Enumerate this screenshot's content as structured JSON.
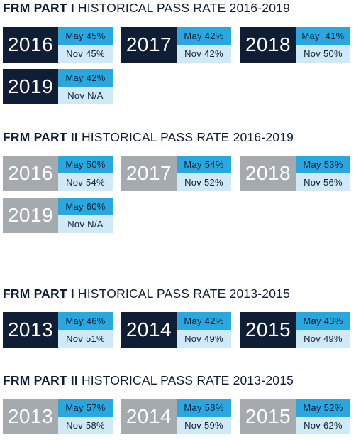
{
  "sections": [
    {
      "title_bold": "FRM PART I",
      "title_rest": " HISTORICAL PASS RATE 2016-2019",
      "style": "dark",
      "years": [
        {
          "year": "2016",
          "may": "May 45%",
          "nov": "Nov 45%"
        },
        {
          "year": "2017",
          "may": "May 42%",
          "nov": "Nov 42%"
        },
        {
          "year": "2018",
          "may": "May  41%",
          "nov": "Nov 50%"
        },
        {
          "year": "2019",
          "may": "May 42%",
          "nov": "Nov N/A"
        }
      ]
    },
    {
      "title_bold": "FRM PART II",
      "title_rest": " HISTORICAL PASS RATE 2016-2019",
      "style": "gray",
      "years": [
        {
          "year": "2016",
          "may": "May 50%",
          "nov": "Nov 54%"
        },
        {
          "year": "2017",
          "may": "May 54%",
          "nov": "Nov 52%"
        },
        {
          "year": "2018",
          "may": "May 53%",
          "nov": "Nov 56%"
        },
        {
          "year": "2019",
          "may": "May 60%",
          "nov": "Nov N/A"
        }
      ]
    },
    {
      "title_bold": "FRM PART I",
      "title_rest": " HISTORICAL PASS RATE 2013-2015",
      "style": "dark",
      "years": [
        {
          "year": "2013",
          "may": "May 46%",
          "nov": "Nov 51%"
        },
        {
          "year": "2014",
          "may": "May 42%",
          "nov": "Nov 49%"
        },
        {
          "year": "2015",
          "may": "May 43%",
          "nov": "Nov 49%"
        }
      ]
    },
    {
      "title_bold": "FRM PART II",
      "title_rest": " HISTORICAL PASS RATE 2013-2015",
      "style": "gray",
      "years": [
        {
          "year": "2013",
          "may": "May 57%",
          "nov": "Nov 58%"
        },
        {
          "year": "2014",
          "may": "May 58%",
          "nov": "Nov 59%"
        },
        {
          "year": "2015",
          "may": "May 52%",
          "nov": "Nov 62%"
        }
      ]
    }
  ],
  "colors": {
    "dark_year": "#0f1d35",
    "gray_year": "#a5aaae",
    "may_bg": "#2aa7df",
    "nov_bg": "#cfe9f6",
    "text": "#0f1d35"
  }
}
